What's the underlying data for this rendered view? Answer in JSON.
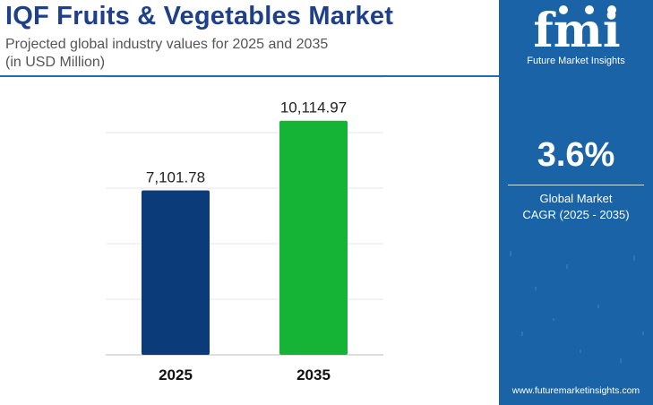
{
  "header": {
    "title": "IQF Fruits & Vegetables Market",
    "subtitle_line1": "Projected global industry values for 2025 and 2035",
    "subtitle_line2": "(in USD Million)"
  },
  "chart_data": {
    "type": "bar",
    "categories": [
      "2025",
      "2035"
    ],
    "values": [
      7101.78,
      10114.97
    ],
    "value_labels": [
      "7,101.78",
      "10,114.97"
    ],
    "ylim": [
      0,
      12000
    ],
    "grid": true,
    "colors": [
      "#0c3b7a",
      "#15b336"
    ]
  },
  "panel": {
    "logo_text": "fmi",
    "logo_subtitle": "Future Market Insights",
    "cagr_value": "3.6%",
    "cagr_label_line1": "Global Market",
    "cagr_label_line2": "CAGR (2025 - 2035)",
    "website": "www.futuremarketinsights.com",
    "background_color": "#1a63a6"
  }
}
